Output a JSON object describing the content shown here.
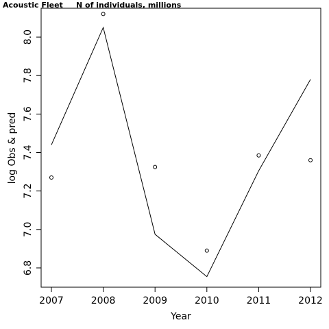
{
  "title": "Acoustic Fleet",
  "subtitle": "N of individuals, millions",
  "chart_data": {
    "type": "line",
    "xlabel": "Year",
    "ylabel": "log Obs & pred",
    "x": [
      2007,
      2008,
      2009,
      2010,
      2011,
      2012
    ],
    "x_ticks": [
      "2007",
      "2008",
      "2009",
      "2010",
      "2011",
      "2012"
    ],
    "y_ticks": [
      "6.8",
      "7.0",
      "7.2",
      "7.4",
      "7.6",
      "7.8",
      "8.0"
    ],
    "xlim": [
      2007,
      2012
    ],
    "ylim": [
      6.7,
      8.15
    ],
    "grid": false,
    "series": [
      {
        "kind": "line",
        "values": [
          7.44,
          8.05,
          6.975,
          6.755,
          7.305,
          7.78
        ]
      },
      {
        "kind": "points",
        "values": [
          7.27,
          8.12,
          7.325,
          6.89,
          7.385,
          7.36
        ]
      }
    ]
  }
}
